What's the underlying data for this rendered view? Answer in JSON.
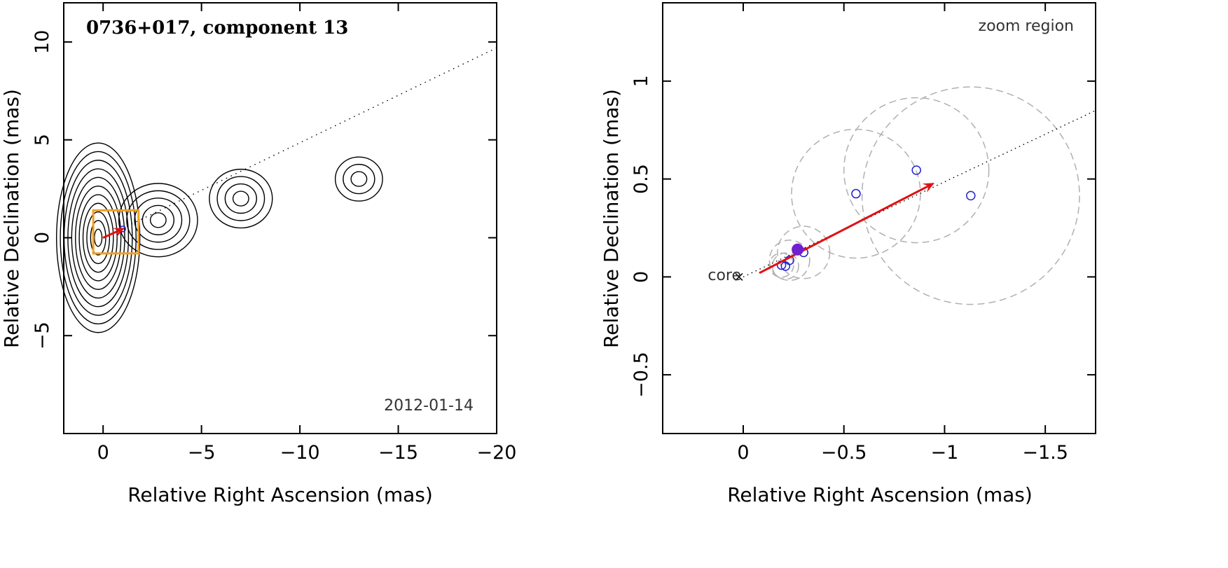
{
  "chart_data": [
    {
      "type": "scatter",
      "title": "0736+017, component 13",
      "xlabel": "Relative Right Ascension (mas)",
      "ylabel": "Relative Declination (mas)",
      "xlim": [
        2.0,
        -20.0
      ],
      "ylim": [
        -10.0,
        12.0
      ],
      "x_ticks": [
        0,
        -5,
        -10,
        -15,
        -20
      ],
      "x_tick_labels": [
        "0",
        "−5",
        "−10",
        "−15",
        "−20"
      ],
      "y_ticks": [
        -5,
        0,
        5,
        10
      ],
      "y_tick_labels": [
        "−5",
        "0",
        "5",
        "10"
      ],
      "date_label": "2012-01-14",
      "colors": {
        "contour": "#000000",
        "arrow": "#e01010",
        "zoom_box": "#f0a020",
        "component": "#2020d0"
      },
      "contour_peaks": [
        {
          "x": 0.0,
          "y": 0.0,
          "levels": 11
        },
        {
          "x": -2.8,
          "y": 0.9,
          "levels": 5
        },
        {
          "x": -7.0,
          "y": 2.0,
          "levels": 4
        },
        {
          "x": -13.0,
          "y": 3.0,
          "levels": 3
        }
      ],
      "jet_ridge": {
        "x": [
          0,
          -20
        ],
        "y": [
          0,
          9.7
        ]
      },
      "zoom_box": {
        "x": [
          0.5,
          -1.8
        ],
        "y": [
          -0.8,
          1.4
        ]
      },
      "arrow": {
        "from": [
          -0.08,
          0.02
        ],
        "to": [
          -0.95,
          0.48
        ]
      }
    },
    {
      "type": "scatter",
      "title": "zoom region",
      "xlabel": "Relative Right Ascension (mas)",
      "ylabel": "Relative Declination (mas)",
      "xlim": [
        0.4,
        -1.75
      ],
      "ylim": [
        -0.8,
        1.4
      ],
      "x_ticks": [
        0,
        -0.5,
        -1,
        -1.5
      ],
      "x_tick_labels": [
        "0",
        "−0.5",
        "−1",
        "−1.5"
      ],
      "y_ticks": [
        -0.5,
        0,
        0.5,
        1
      ],
      "y_tick_labels": [
        "−0.5",
        "0",
        "0.5",
        "1"
      ],
      "core_label": "core",
      "colors": {
        "arrow": "#e01010",
        "points": "#2020d0",
        "highlight": "#7020d0",
        "circles": "#b0b0b0"
      },
      "points": [
        {
          "x": -0.19,
          "y": 0.06
        },
        {
          "x": -0.21,
          "y": 0.055
        },
        {
          "x": -0.23,
          "y": 0.085
        },
        {
          "x": -0.3,
          "y": 0.125
        },
        {
          "x": -0.56,
          "y": 0.425
        },
        {
          "x": -0.86,
          "y": 0.545
        },
        {
          "x": -1.13,
          "y": 0.415
        }
      ],
      "highlight_point": {
        "x": -0.27,
        "y": 0.14
      },
      "fit_circles": [
        {
          "x": -0.19,
          "y": 0.06,
          "r": 0.06
        },
        {
          "x": -0.21,
          "y": 0.055,
          "r": 0.065
        },
        {
          "x": -0.23,
          "y": 0.085,
          "r": 0.1
        },
        {
          "x": -0.3,
          "y": 0.125,
          "r": 0.13
        },
        {
          "x": -0.56,
          "y": 0.425,
          "r": 0.32
        },
        {
          "x": -0.86,
          "y": 0.545,
          "r": 0.36
        },
        {
          "x": -1.13,
          "y": 0.415,
          "r": 0.54
        }
      ],
      "jet_ridge": {
        "x": [
          0,
          -1.75
        ],
        "y": [
          0,
          0.85
        ]
      },
      "arrow": {
        "from": [
          -0.08,
          0.02
        ],
        "to": [
          -0.95,
          0.48
        ]
      }
    }
  ]
}
